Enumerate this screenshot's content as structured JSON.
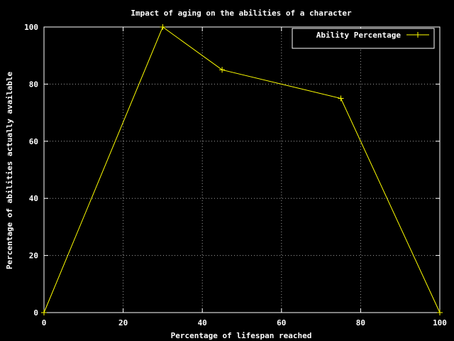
{
  "chart_data": {
    "type": "line",
    "title": "Impact of aging on the abilities of a character",
    "xlabel": "Percentage of lifespan reached",
    "ylabel": "Percentage of abilities actually available",
    "xlim": [
      0,
      100
    ],
    "ylim": [
      0,
      100
    ],
    "x_ticks": [
      0,
      20,
      40,
      60,
      80,
      100
    ],
    "y_ticks": [
      0,
      20,
      40,
      60,
      80,
      100
    ],
    "grid": true,
    "legend_position": "top-right",
    "background_color": "#000000",
    "axis_color": "#ffffff",
    "grid_color": "#a0a0a0",
    "series": [
      {
        "name": "Ability Percentage",
        "color": "#ffff00",
        "marker": "plus",
        "points": [
          {
            "x": 0,
            "y": 0
          },
          {
            "x": 30,
            "y": 100
          },
          {
            "x": 45,
            "y": 85
          },
          {
            "x": 75,
            "y": 75
          },
          {
            "x": 100,
            "y": 0
          }
        ]
      }
    ]
  }
}
